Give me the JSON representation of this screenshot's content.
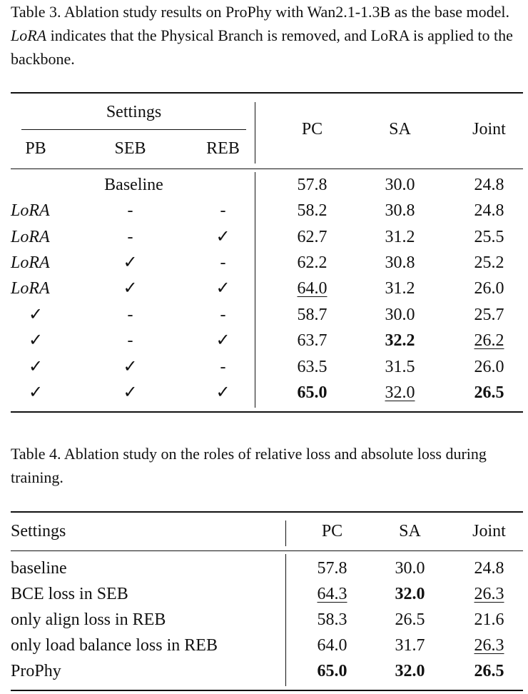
{
  "table3": {
    "caption": {
      "label": "Table 3.",
      "text_a": "Ablation study results on ProPhy with Wan2.1-1.3B as the base model.",
      "italic": "LoRA",
      "text_b": "indicates that the Physical Branch is removed, and LoRA is applied to the backbone."
    },
    "header": {
      "group": "Settings",
      "pb": "PB",
      "seb": "SEB",
      "reb": "REB",
      "pc": "PC",
      "sa": "SA",
      "joint": "Joint"
    },
    "baseline": {
      "label": "Baseline",
      "pc": "57.8",
      "sa": "30.0",
      "joint": "24.8"
    },
    "rows": [
      {
        "pb": "LoRA",
        "seb": "-",
        "reb": "-",
        "pc": "58.2",
        "sa": "30.8",
        "joint": "24.8"
      },
      {
        "pb": "LoRA",
        "seb": "-",
        "reb": "✓",
        "pc": "62.7",
        "sa": "31.2",
        "joint": "25.5"
      },
      {
        "pb": "LoRA",
        "seb": "✓",
        "reb": "-",
        "pc": "62.2",
        "sa": "30.8",
        "joint": "25.2"
      },
      {
        "pb": "LoRA",
        "seb": "✓",
        "reb": "✓",
        "pc": "64.0",
        "sa": "31.2",
        "joint": "26.0"
      },
      {
        "pb": "✓",
        "seb": "-",
        "reb": "-",
        "pc": "58.7",
        "sa": "30.0",
        "joint": "25.7"
      },
      {
        "pb": "✓",
        "seb": "-",
        "reb": "✓",
        "pc": "63.7",
        "sa": "32.2",
        "joint": "26.2"
      },
      {
        "pb": "✓",
        "seb": "✓",
        "reb": "-",
        "pc": "63.5",
        "sa": "31.5",
        "joint": "26.0"
      },
      {
        "pb": "✓",
        "seb": "✓",
        "reb": "✓",
        "pc": "65.0",
        "sa": "32.0",
        "joint": "26.5"
      }
    ]
  },
  "table4": {
    "caption": {
      "label": "Table 4.",
      "text": "Ablation study on the roles of relative loss and absolute loss during training."
    },
    "header": {
      "settings": "Settings",
      "pc": "PC",
      "sa": "SA",
      "joint": "Joint"
    },
    "rows": [
      {
        "setting": "baseline",
        "pc": "57.8",
        "sa": "30.0",
        "joint": "24.8"
      },
      {
        "setting": "BCE loss in SEB",
        "pc": "64.3",
        "sa": "32.0",
        "joint": "26.3"
      },
      {
        "setting": "only align loss in REB",
        "pc": "58.3",
        "sa": "26.5",
        "joint": "21.6"
      },
      {
        "setting": "only load balance loss in REB",
        "pc": "64.0",
        "sa": "31.7",
        "joint": "26.3"
      },
      {
        "setting": "ProPhy",
        "pc": "65.0",
        "sa": "32.0",
        "joint": "26.5"
      }
    ]
  }
}
